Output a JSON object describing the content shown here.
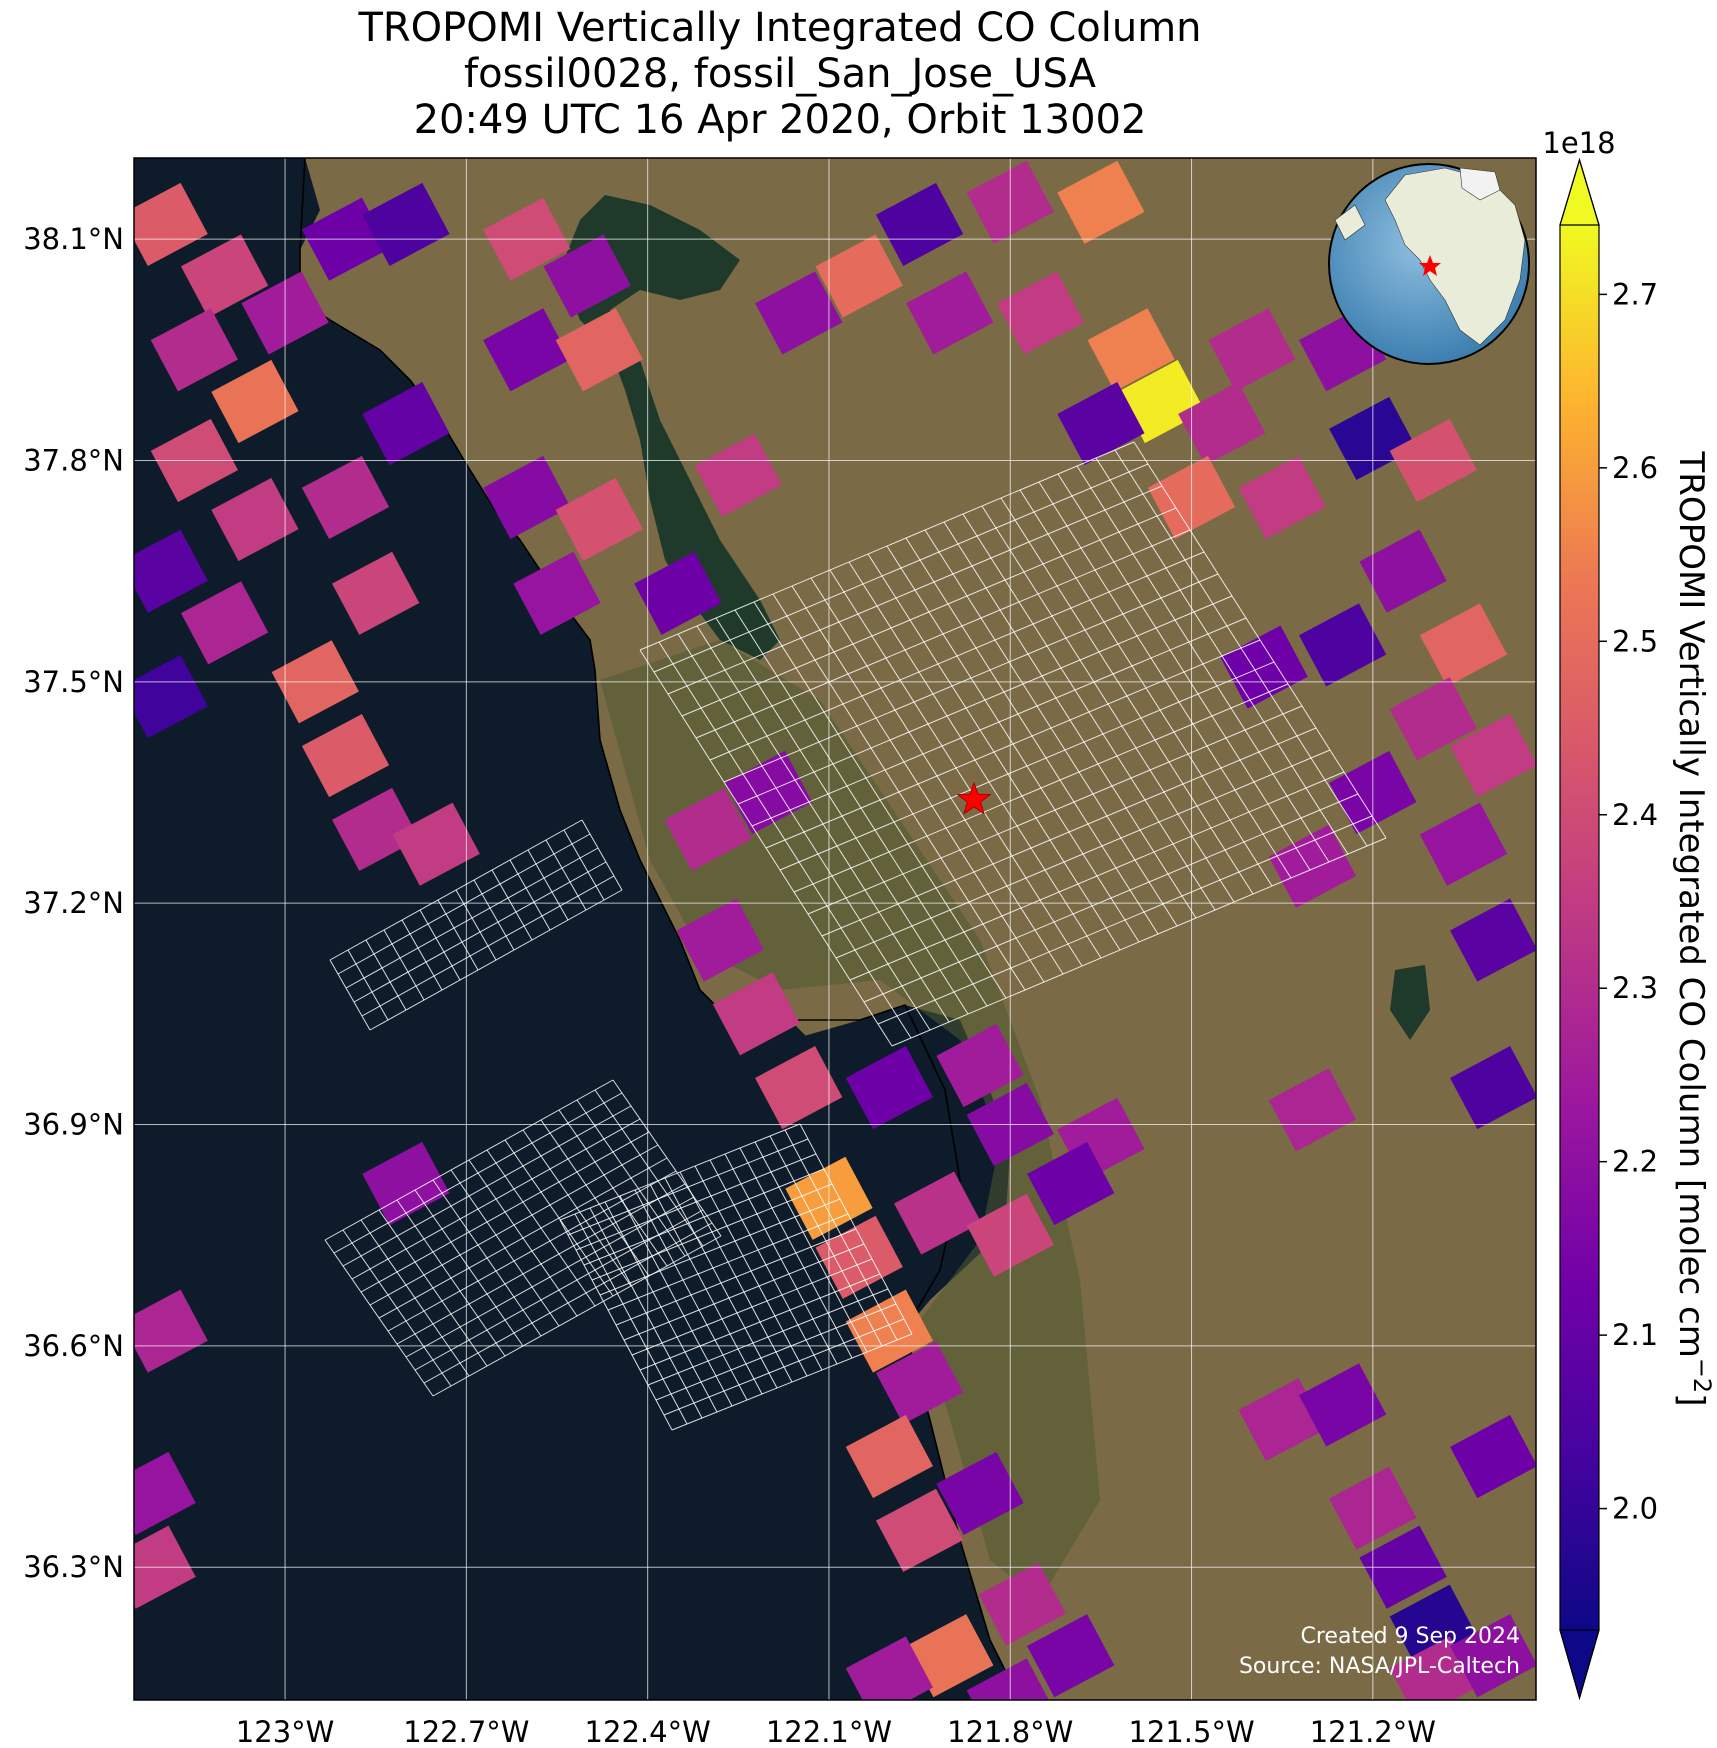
{
  "title_lines": [
    "TROPOMI Vertically Integrated CO Column",
    "fossil0028, fossil_San_Jose_USA",
    "20:49 UTC 16 Apr 2020, Orbit 13002"
  ],
  "map": {
    "lon_range": [
      -123.25,
      -120.93
    ],
    "lat_range": [
      36.12,
      38.21
    ],
    "lon_ticks": [
      {
        "value": -123.0,
        "label": "123°W"
      },
      {
        "value": -122.7,
        "label": "122.7°W"
      },
      {
        "value": -122.4,
        "label": "122.4°W"
      },
      {
        "value": -122.1,
        "label": "122.1°W"
      },
      {
        "value": -121.8,
        "label": "121.8°W"
      },
      {
        "value": -121.5,
        "label": "121.5°W"
      },
      {
        "value": -121.2,
        "label": "121.2°W"
      }
    ],
    "lat_ticks": [
      {
        "value": 38.1,
        "label": "38.1°N"
      },
      {
        "value": 37.8,
        "label": "37.8°N"
      },
      {
        "value": 37.5,
        "label": "37.5°N"
      },
      {
        "value": 37.2,
        "label": "37.2°N"
      },
      {
        "value": 36.9,
        "label": "36.9°N"
      },
      {
        "value": 36.6,
        "label": "36.6°N"
      },
      {
        "value": 36.3,
        "label": "36.3°N"
      }
    ],
    "target": {
      "name": "fossil_San_Jose_USA",
      "lon": -121.86,
      "lat": 37.34
    },
    "ocean_color": "#0d1b2a",
    "land_color": "#7a6a45",
    "colormap": "plasma"
  },
  "colorbar": {
    "label": "TROPOMI Vertically Integrated CO Column [molec cm",
    "label_sup": "−2",
    "label_end": "]",
    "exponent": "1e18",
    "range": [
      1.93,
      2.74
    ],
    "ticks": [
      {
        "value": 2.0,
        "label": "2.0"
      },
      {
        "value": 2.1,
        "label": "2.1"
      },
      {
        "value": 2.2,
        "label": "2.2"
      },
      {
        "value": 2.3,
        "label": "2.3"
      },
      {
        "value": 2.4,
        "label": "2.4"
      },
      {
        "value": 2.5,
        "label": "2.5"
      },
      {
        "value": 2.6,
        "label": "2.6"
      },
      {
        "value": 2.7,
        "label": "2.7"
      }
    ]
  },
  "footer": {
    "created": "Created 9 Sep 2024",
    "source": "Source: NASA/JPL-Caltech"
  },
  "chart_data": {
    "type": "heatmap",
    "value_unit": "1e18 molec cm-2",
    "pixels": [
      {
        "lon": -123.2,
        "lat": 38.12,
        "v": 2.45
      },
      {
        "lon": -123.1,
        "lat": 38.05,
        "v": 2.38
      },
      {
        "lon": -123.0,
        "lat": 38.0,
        "v": 2.25
      },
      {
        "lon": -122.9,
        "lat": 38.1,
        "v": 2.12
      },
      {
        "lon": -122.8,
        "lat": 38.12,
        "v": 2.05
      },
      {
        "lon": -122.6,
        "lat": 38.1,
        "v": 2.4
      },
      {
        "lon": -122.5,
        "lat": 38.05,
        "v": 2.2
      },
      {
        "lon": -122.6,
        "lat": 37.95,
        "v": 2.15
      },
      {
        "lon": -122.48,
        "lat": 37.95,
        "v": 2.48
      },
      {
        "lon": -123.15,
        "lat": 37.95,
        "v": 2.3
      },
      {
        "lon": -123.05,
        "lat": 37.88,
        "v": 2.52
      },
      {
        "lon": -123.15,
        "lat": 37.8,
        "v": 2.4
      },
      {
        "lon": -123.05,
        "lat": 37.72,
        "v": 2.35
      },
      {
        "lon": -123.2,
        "lat": 37.65,
        "v": 2.08
      },
      {
        "lon": -123.1,
        "lat": 37.58,
        "v": 2.28
      },
      {
        "lon": -123.2,
        "lat": 37.48,
        "v": 2.02
      },
      {
        "lon": -122.8,
        "lat": 37.85,
        "v": 2.1
      },
      {
        "lon": -122.9,
        "lat": 37.75,
        "v": 2.3
      },
      {
        "lon": -122.85,
        "lat": 37.62,
        "v": 2.38
      },
      {
        "lon": -122.95,
        "lat": 37.5,
        "v": 2.48
      },
      {
        "lon": -122.9,
        "lat": 37.4,
        "v": 2.45
      },
      {
        "lon": -122.85,
        "lat": 37.3,
        "v": 2.3
      },
      {
        "lon": -122.75,
        "lat": 37.28,
        "v": 2.35
      },
      {
        "lon": -122.6,
        "lat": 37.75,
        "v": 2.18
      },
      {
        "lon": -122.48,
        "lat": 37.72,
        "v": 2.42
      },
      {
        "lon": -122.55,
        "lat": 37.62,
        "v": 2.22
      },
      {
        "lon": -122.35,
        "lat": 37.62,
        "v": 2.12
      },
      {
        "lon": -122.25,
        "lat": 37.78,
        "v": 2.35
      },
      {
        "lon": -121.8,
        "lat": 38.15,
        "v": 2.3
      },
      {
        "lon": -121.65,
        "lat": 38.15,
        "v": 2.55
      },
      {
        "lon": -121.95,
        "lat": 38.12,
        "v": 2.05
      },
      {
        "lon": -122.05,
        "lat": 38.05,
        "v": 2.5
      },
      {
        "lon": -122.15,
        "lat": 38.0,
        "v": 2.2
      },
      {
        "lon": -121.9,
        "lat": 38.0,
        "v": 2.25
      },
      {
        "lon": -121.75,
        "lat": 38.0,
        "v": 2.35
      },
      {
        "lon": -121.6,
        "lat": 37.95,
        "v": 2.55
      },
      {
        "lon": -121.55,
        "lat": 37.88,
        "v": 2.72
      },
      {
        "lon": -121.65,
        "lat": 37.85,
        "v": 2.08
      },
      {
        "lon": -121.45,
        "lat": 37.85,
        "v": 2.3
      },
      {
        "lon": -121.5,
        "lat": 37.75,
        "v": 2.5
      },
      {
        "lon": -121.4,
        "lat": 37.95,
        "v": 2.3
      },
      {
        "lon": -121.25,
        "lat": 37.95,
        "v": 2.2
      },
      {
        "lon": -121.2,
        "lat": 37.83,
        "v": 1.98
      },
      {
        "lon": -121.1,
        "lat": 37.8,
        "v": 2.42
      },
      {
        "lon": -121.35,
        "lat": 37.75,
        "v": 2.35
      },
      {
        "lon": -121.15,
        "lat": 37.65,
        "v": 2.2
      },
      {
        "lon": -121.05,
        "lat": 37.55,
        "v": 2.48
      },
      {
        "lon": -121.25,
        "lat": 37.55,
        "v": 2.05
      },
      {
        "lon": -121.1,
        "lat": 37.45,
        "v": 2.3
      },
      {
        "lon": -121.0,
        "lat": 37.4,
        "v": 2.35
      },
      {
        "lon": -121.2,
        "lat": 37.35,
        "v": 2.15
      },
      {
        "lon": -121.3,
        "lat": 37.25,
        "v": 2.25
      },
      {
        "lon": -121.38,
        "lat": 37.52,
        "v": 2.12
      },
      {
        "lon": -121.0,
        "lat": 37.15,
        "v": 2.08
      },
      {
        "lon": -121.05,
        "lat": 37.28,
        "v": 2.22
      },
      {
        "lon": -121.0,
        "lat": 36.95,
        "v": 2.05
      },
      {
        "lon": -121.3,
        "lat": 36.92,
        "v": 2.28
      },
      {
        "lon": -121.65,
        "lat": 36.88,
        "v": 2.25
      },
      {
        "lon": -121.7,
        "lat": 36.82,
        "v": 2.12
      },
      {
        "lon": -122.3,
        "lat": 37.3,
        "v": 2.3
      },
      {
        "lon": -122.2,
        "lat": 37.35,
        "v": 2.18
      },
      {
        "lon": -122.28,
        "lat": 37.15,
        "v": 2.25
      },
      {
        "lon": -122.22,
        "lat": 37.05,
        "v": 2.35
      },
      {
        "lon": -122.15,
        "lat": 36.95,
        "v": 2.4
      },
      {
        "lon": -122.0,
        "lat": 36.95,
        "v": 2.12
      },
      {
        "lon": -121.85,
        "lat": 36.98,
        "v": 2.25
      },
      {
        "lon": -121.8,
        "lat": 36.9,
        "v": 2.18
      },
      {
        "lon": -122.1,
        "lat": 36.8,
        "v": 2.6
      },
      {
        "lon": -122.05,
        "lat": 36.72,
        "v": 2.45
      },
      {
        "lon": -122.0,
        "lat": 36.62,
        "v": 2.55
      },
      {
        "lon": -121.92,
        "lat": 36.78,
        "v": 2.32
      },
      {
        "lon": -121.8,
        "lat": 36.75,
        "v": 2.38
      },
      {
        "lon": -121.95,
        "lat": 36.55,
        "v": 2.25
      },
      {
        "lon": -122.0,
        "lat": 36.45,
        "v": 2.48
      },
      {
        "lon": -121.95,
        "lat": 36.35,
        "v": 2.4
      },
      {
        "lon": -121.85,
        "lat": 36.4,
        "v": 2.15
      },
      {
        "lon": -122.8,
        "lat": 36.82,
        "v": 2.2
      },
      {
        "lon": -123.2,
        "lat": 36.62,
        "v": 2.28
      },
      {
        "lon": -123.22,
        "lat": 36.4,
        "v": 2.22
      },
      {
        "lon": -123.22,
        "lat": 36.3,
        "v": 2.35
      },
      {
        "lon": -121.35,
        "lat": 36.5,
        "v": 2.28
      },
      {
        "lon": -121.25,
        "lat": 36.52,
        "v": 2.15
      },
      {
        "lon": -121.2,
        "lat": 36.38,
        "v": 2.28
      },
      {
        "lon": -121.15,
        "lat": 36.3,
        "v": 2.1
      },
      {
        "lon": -121.1,
        "lat": 36.22,
        "v": 1.97
      },
      {
        "lon": -121.0,
        "lat": 36.45,
        "v": 2.12
      },
      {
        "lon": -121.1,
        "lat": 36.15,
        "v": 2.3
      },
      {
        "lon": -121.0,
        "lat": 36.18,
        "v": 2.2
      },
      {
        "lon": -121.9,
        "lat": 36.18,
        "v": 2.52
      },
      {
        "lon": -121.8,
        "lat": 36.12,
        "v": 2.2
      },
      {
        "lon": -121.7,
        "lat": 36.18,
        "v": 2.15
      },
      {
        "lon": -121.78,
        "lat": 36.25,
        "v": 2.3
      },
      {
        "lon": -122.0,
        "lat": 36.15,
        "v": 2.25
      }
    ]
  }
}
